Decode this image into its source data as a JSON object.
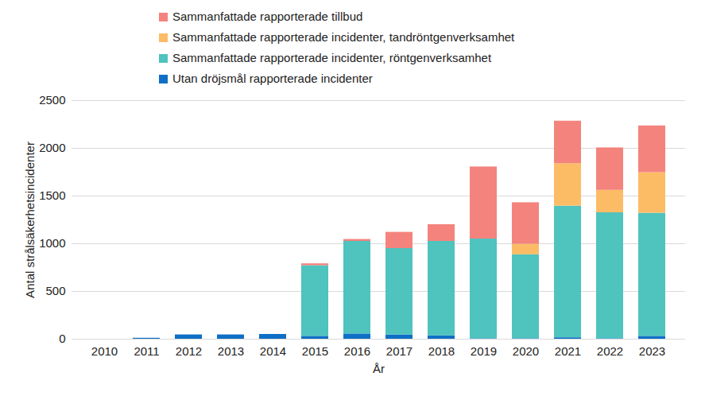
{
  "chart_data": {
    "type": "bar",
    "stacked": true,
    "grid": true,
    "legend": "top",
    "x_label": "År",
    "y_label": "Antal strålsäkerhetsincidenter",
    "categories": [
      "2010",
      "2011",
      "2012",
      "2013",
      "2014",
      "2015",
      "2016",
      "2017",
      "2018",
      "2019",
      "2020",
      "2021",
      "2022",
      "2023"
    ],
    "ylim": [
      0,
      2500
    ],
    "yticks": [
      0,
      500,
      1000,
      1500,
      2000,
      2500
    ],
    "series": [
      {
        "name": "Utan dröjsmål rapporterade incidenter",
        "color": "#0f6fc6",
        "values": [
          0,
          10,
          45,
          45,
          50,
          30,
          55,
          45,
          35,
          5,
          5,
          15,
          5,
          30
        ]
      },
      {
        "name": "Sammanfattade rapporterade incidenter, röntgenverksamhet",
        "color": "#4fc3be",
        "values": [
          0,
          0,
          0,
          0,
          0,
          740,
          970,
          905,
          990,
          1045,
          880,
          1380,
          1320,
          1290
        ]
      },
      {
        "name": "Sammanfattade rapporterade incidenter, tandröntgenverksamhet",
        "color": "#fcbc66",
        "values": [
          0,
          0,
          0,
          0,
          0,
          0,
          0,
          0,
          0,
          0,
          110,
          445,
          235,
          425
        ]
      },
      {
        "name": "Sammanfattade rapporterade tillbud",
        "color": "#f4837d",
        "values": [
          0,
          0,
          0,
          0,
          0,
          20,
          20,
          170,
          175,
          755,
          435,
          445,
          445,
          490
        ]
      }
    ]
  }
}
